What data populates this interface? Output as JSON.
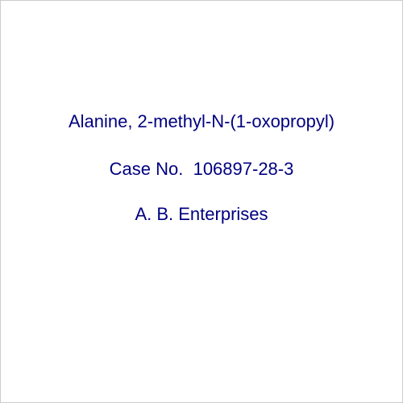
{
  "chemical": {
    "name": "Alanine, 2-methyl-N-(1-oxopropyl)",
    "case_label": "Case No.",
    "case_number": "106897-28-3"
  },
  "company": {
    "name": "A. B. Enterprises"
  },
  "styling": {
    "text_color": "#000080",
    "background_color": "#ffffff",
    "border_color": "#cccccc",
    "font_size": 22,
    "font_family": "Verdana, Geneva, sans-serif"
  }
}
